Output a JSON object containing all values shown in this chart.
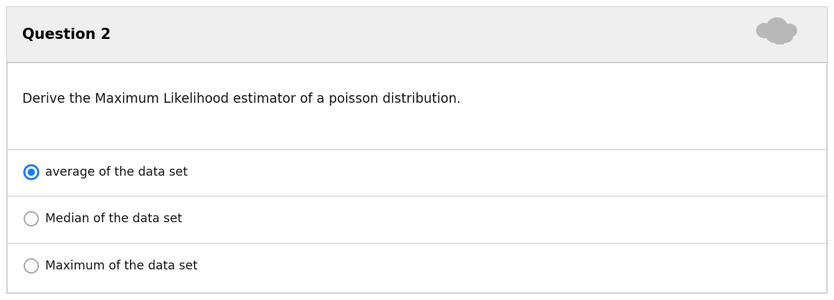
{
  "title": "Question 2",
  "question_text": "Derive the Maximum Likelihood estimator of a poisson distribution.",
  "options": [
    {
      "text": "average of the data set",
      "selected": true
    },
    {
      "text": "Median of the data set",
      "selected": false
    },
    {
      "text": "Maximum of the data set",
      "selected": false
    }
  ],
  "header_bg": "#efefef",
  "body_bg": "#ffffff",
  "border_color": "#c8c8c8",
  "title_color": "#000000",
  "question_color": "#1a1a1a",
  "option_color": "#1a1a1a",
  "title_fontsize": 15,
  "question_fontsize": 13.5,
  "option_fontsize": 12.5,
  "selected_ring_color": "#1a7ef0",
  "selected_fill_color": "#1a7ef0",
  "unselected_ring_color": "#aaaaaa",
  "separator_color": "#d0d0d0",
  "cloud_color": "#b8b8b8"
}
